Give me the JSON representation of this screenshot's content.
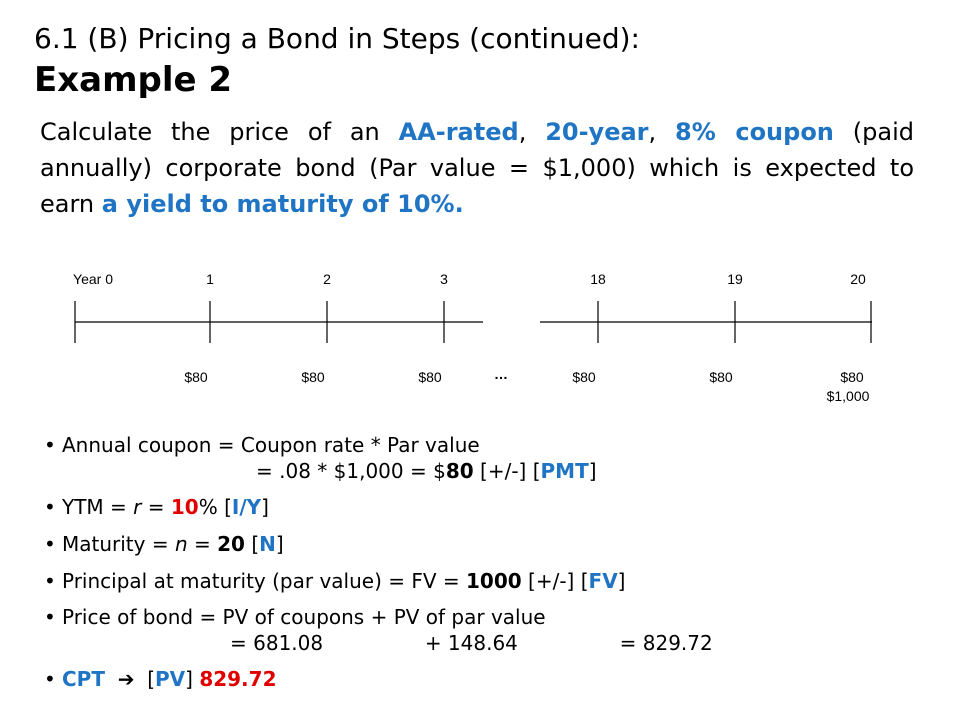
{
  "slide": {
    "subtitle": "6.1 (B)  Pricing a Bond in Steps (continued):",
    "title": "Example 2"
  },
  "question": {
    "p1": "Calculate the price of an ",
    "h1": "AA-rated",
    "c1": ", ",
    "h2": "20-year",
    "c2": ", ",
    "h3": "8% coupon",
    "p2": " (paid annually) corporate bond (Par value = $1,000) which is expected to earn ",
    "h4": "a yield to maturity of 10%."
  },
  "timeline": {
    "years": [
      "Year 0",
      "1",
      "2",
      "3",
      "18",
      "19",
      "20"
    ],
    "cashflows": [
      "$80",
      "$80",
      "$80",
      "$80",
      "$80",
      "$80"
    ],
    "ellipsis": "…",
    "final_principal": "$1,000"
  },
  "bullets": {
    "coupon": {
      "l1": "Annual coupon = Coupon rate * Par value",
      "l2a": "= .08 * $1,000 = $",
      "l2b": "80",
      "l2c": " [+/-] [",
      "l2d": "PMT",
      "l2e": "]"
    },
    "ytm": {
      "a": "YTM = ",
      "b": "r",
      "c": " = ",
      "d": "10",
      "e": "% [",
      "f": "I/Y",
      "g": "]"
    },
    "maturity": {
      "a": "Maturity = ",
      "b": "n",
      "c": " = ",
      "d": "20",
      "e": " [",
      "f": "N",
      "g": "]"
    },
    "principal": {
      "a": "Principal at maturity (par value) = FV = ",
      "b": "1000",
      "c": " [+/-] [",
      "d": "FV",
      "e": "]"
    },
    "price": {
      "l1": "Price of bond = PV of coupons + PV of par value",
      "l2": "= 681.08                + 148.64                = 829.72"
    },
    "cpt": {
      "a": "CPT",
      "arrow": "➔",
      "b": "[",
      "c": "PV",
      "d": "]",
      "e": "829.72"
    }
  }
}
